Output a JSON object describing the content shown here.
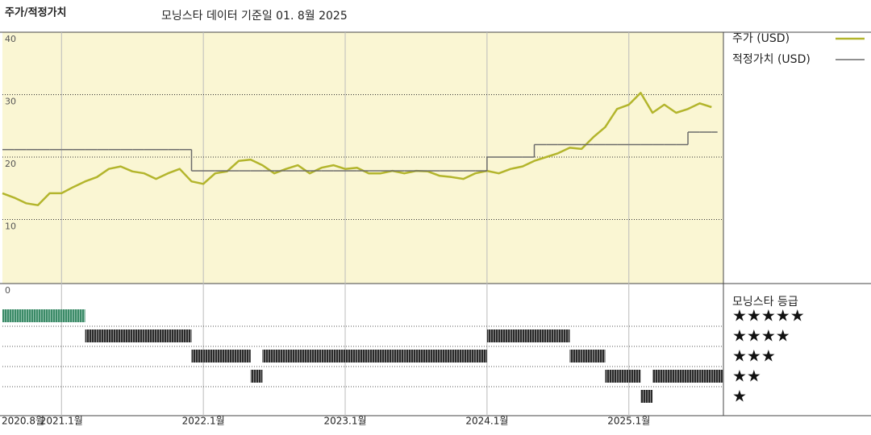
{
  "chart_data": {
    "type": "line",
    "title": "주가/적정가치",
    "subtitle": "모닝스타 데이터 기준일 01. 8월 2025",
    "x": [
      "2020-08",
      "2020-09",
      "2020-10",
      "2020-11",
      "2020-12",
      "2021-01",
      "2021-02",
      "2021-03",
      "2021-04",
      "2021-05",
      "2021-06",
      "2021-07",
      "2021-08",
      "2021-09",
      "2021-10",
      "2021-11",
      "2021-12",
      "2022-01",
      "2022-02",
      "2022-03",
      "2022-04",
      "2022-05",
      "2022-06",
      "2022-07",
      "2022-08",
      "2022-09",
      "2022-10",
      "2022-11",
      "2022-12",
      "2023-01",
      "2023-02",
      "2023-03",
      "2023-04",
      "2023-05",
      "2023-06",
      "2023-07",
      "2023-08",
      "2023-09",
      "2023-10",
      "2023-11",
      "2023-12",
      "2024-01",
      "2024-02",
      "2024-03",
      "2024-04",
      "2024-05",
      "2024-06",
      "2024-07",
      "2024-08",
      "2024-09",
      "2024-10",
      "2024-11",
      "2024-12",
      "2025-01",
      "2025-02",
      "2025-03",
      "2025-04",
      "2025-05",
      "2025-06",
      "2025-07",
      "2025-08"
    ],
    "xlim": [
      "2020-08",
      "2025-09"
    ],
    "xticks": [
      {
        "value": "2020-08",
        "label": "2020.8월"
      },
      {
        "value": "2021-01",
        "label": "2021.1월"
      },
      {
        "value": "2022-01",
        "label": "2022.1월"
      },
      {
        "value": "2023-01",
        "label": "2023.1월"
      },
      {
        "value": "2024-01",
        "label": "2024.1월"
      },
      {
        "value": "2025-01",
        "label": "2025.1월"
      }
    ],
    "ylim": [
      0,
      40
    ],
    "yticks": [
      0,
      10,
      20,
      30,
      40
    ],
    "grid": true,
    "series": [
      {
        "name": "주가 (USD)",
        "color": "#b3b52c",
        "values": [
          14.2,
          13.5,
          12.6,
          12.3,
          14.2,
          14.2,
          15.2,
          16.1,
          16.8,
          18.1,
          18.5,
          17.7,
          17.4,
          16.5,
          17.4,
          18.1,
          16.1,
          15.7,
          17.4,
          17.7,
          19.4,
          19.6,
          18.7,
          17.4,
          18.1,
          18.7,
          17.4,
          18.3,
          18.7,
          18.1,
          18.3,
          17.4,
          17.4,
          17.8,
          17.4,
          17.8,
          17.7,
          17.0,
          16.8,
          16.5,
          17.4,
          17.8,
          17.4,
          18.1,
          18.5,
          19.4,
          20.0,
          20.6,
          21.5,
          21.3,
          23.2,
          24.8,
          27.7,
          28.4,
          30.3,
          27.1,
          28.4,
          27.1,
          27.7,
          28.6,
          28.0
        ]
      },
      {
        "name": "적정가치 (USD)",
        "color": "#6b6b6b",
        "step": true,
        "values": [
          21.2,
          21.2,
          21.2,
          21.2,
          21.2,
          21.2,
          21.2,
          21.2,
          21.2,
          21.2,
          21.2,
          21.2,
          21.2,
          21.2,
          21.2,
          21.2,
          17.8,
          17.8,
          17.8,
          17.8,
          17.8,
          17.8,
          17.8,
          17.8,
          17.8,
          17.8,
          17.8,
          17.8,
          17.8,
          17.8,
          17.8,
          17.8,
          17.8,
          17.8,
          17.8,
          17.8,
          17.8,
          17.8,
          17.8,
          17.8,
          17.8,
          20.0,
          20.0,
          20.0,
          20.0,
          22.0,
          22.0,
          22.0,
          22.0,
          22.0,
          22.0,
          22.0,
          22.0,
          22.0,
          22.0,
          22.0,
          22.0,
          22.0,
          24.0,
          24.0,
          24.0
        ]
      }
    ],
    "rating": {
      "title": "모닝스타 등급",
      "values": [
        5,
        5,
        5,
        5,
        5,
        5,
        5,
        4,
        4,
        4,
        4,
        4,
        4,
        4,
        4,
        4,
        3,
        3,
        3,
        3,
        3,
        2,
        3,
        3,
        3,
        3,
        3,
        3,
        3,
        3,
        3,
        3,
        3,
        3,
        3,
        3,
        3,
        3,
        3,
        3,
        3,
        4,
        4,
        4,
        4,
        4,
        4,
        4,
        3,
        3,
        3,
        2,
        2,
        2,
        1,
        2,
        2,
        2,
        2,
        2,
        2
      ],
      "levels": [
        {
          "value": 5,
          "label": "★★★★★"
        },
        {
          "value": 4,
          "label": "★★★★"
        },
        {
          "value": 3,
          "label": "★★★"
        },
        {
          "value": 2,
          "label": "★★"
        },
        {
          "value": 1,
          "label": "★"
        }
      ]
    }
  }
}
